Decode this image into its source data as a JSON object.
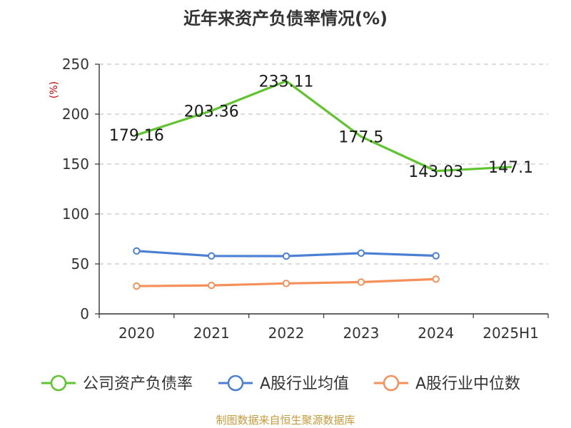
{
  "title": "近年来资产负债率情况(%)",
  "source": "制图数据来自恒生聚源数据库",
  "chart_data": {
    "type": "line",
    "title": "近年来资产负债率情况(%)",
    "ylabel": "(%)",
    "xlabel": "",
    "categories": [
      "2020",
      "2021",
      "2022",
      "2023",
      "2024",
      "2025H1"
    ],
    "ylim": [
      0,
      250
    ],
    "yticks": [
      0,
      50,
      100,
      150,
      200,
      250
    ],
    "grid": "horizontal-dashed",
    "legend_position": "bottom",
    "series": [
      {
        "name": "公司资产负债率",
        "color": "#5fc42d",
        "values": [
          179.16,
          203.36,
          233.11,
          177.5,
          143.03,
          147.1
        ],
        "labels": [
          "179.16",
          "203.36",
          "233.11",
          "177.5",
          "143.03",
          "147.1"
        ],
        "markers": false
      },
      {
        "name": "A股行业均值",
        "color": "#4a7fd4",
        "values": [
          63,
          58,
          57.8,
          60.8,
          58.2,
          null
        ],
        "markers": true
      },
      {
        "name": "A股行业中位数",
        "color": "#f5905a",
        "values": [
          27.8,
          28.5,
          30.5,
          31.8,
          34.8,
          null
        ],
        "markers": true
      }
    ]
  }
}
